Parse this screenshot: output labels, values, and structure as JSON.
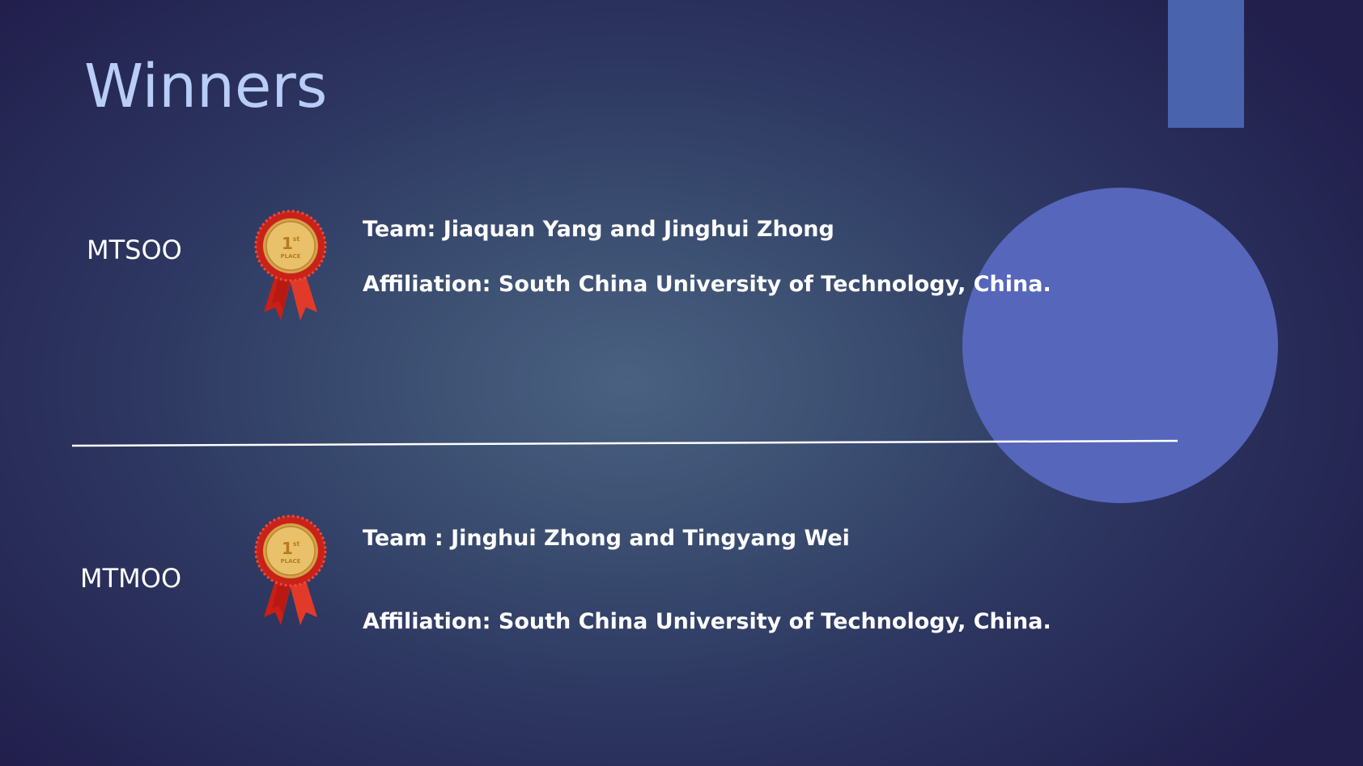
{
  "slide": {
    "title": "Winners",
    "colors": {
      "title": "#b8cdf7",
      "accent_bar": "#4a63ad",
      "circle": "#5566bb",
      "text": "#ffffff",
      "medal_gold": "#e8b34a",
      "ribbon_red": "#d42a1e"
    }
  },
  "winners": [
    {
      "category": "MTSOO",
      "medal_text": "1st PLACE",
      "team": "Team:  Jiaquan Yang and Jinghui Zhong",
      "affiliation": "Affiliation: South China University of Technology, China."
    },
    {
      "category": "MTMOO",
      "medal_text": "1st PLACE",
      "team": "Team : Jinghui Zhong and Tingyang Wei",
      "affiliation": "Affiliation: South China University of Technology, China."
    }
  ]
}
